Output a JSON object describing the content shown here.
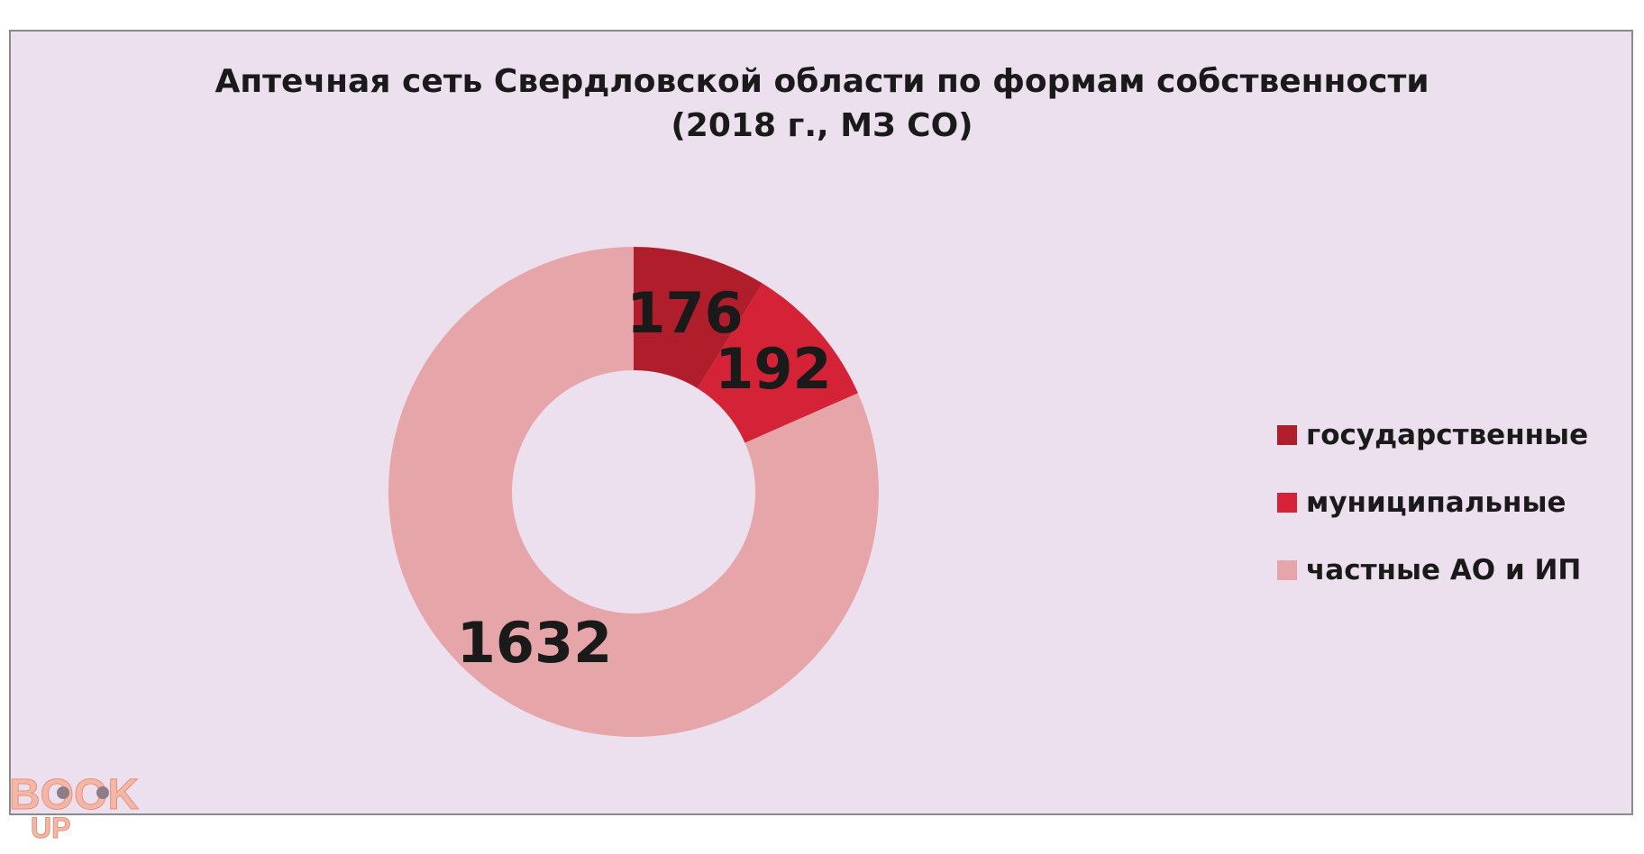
{
  "chart_data": {
    "type": "pie",
    "title": "Аптечная сеть Свердловской области по формам собственности",
    "subtitle": "(2018 г., МЗ СО)",
    "categories": [
      "государственные",
      "муниципальные",
      "частные АО и ИП"
    ],
    "values": [
      176,
      192,
      1632
    ],
    "data_labels": [
      "176",
      "192",
      "1632"
    ],
    "colors": [
      "#b01e2c",
      "#d42236",
      "#e6a5a8"
    ],
    "hole": "donut",
    "legend_position": "right"
  },
  "watermark": {
    "text_top": "BOOK",
    "text_bottom": "UP"
  }
}
